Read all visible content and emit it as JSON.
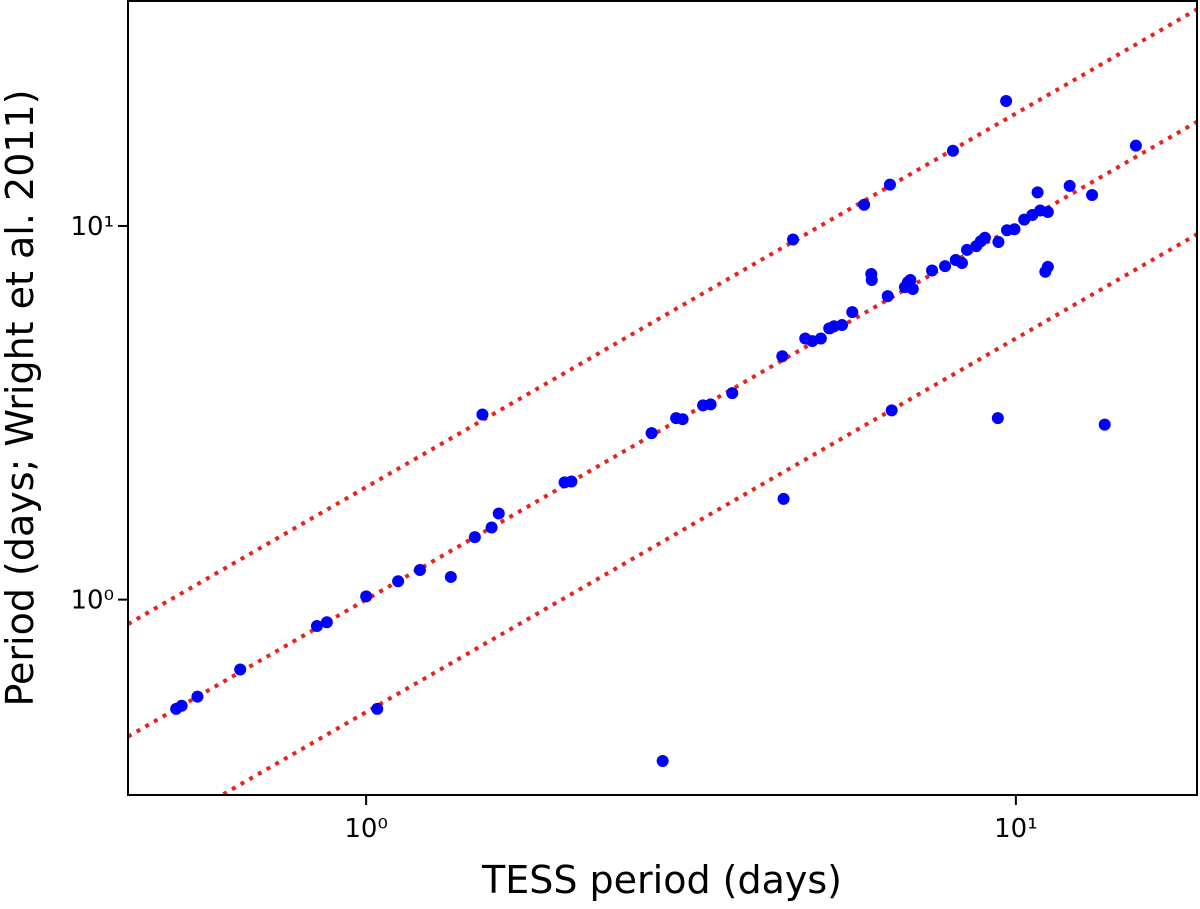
{
  "chart_data": {
    "type": "scatter",
    "xlabel": "TESS period (days)",
    "ylabel": "Period (days; Wright et al. 2011)",
    "xscale": "log",
    "yscale": "log",
    "xlim": [
      0.43,
      19
    ],
    "ylim": [
      0.3,
      40
    ],
    "xticks": [
      {
        "value": 1,
        "label": "10⁰"
      },
      {
        "value": 10,
        "label": "10¹"
      }
    ],
    "yticks": [
      {
        "value": 1,
        "label": "10⁰"
      },
      {
        "value": 10,
        "label": "10¹"
      }
    ],
    "color": "#0000ff",
    "reference_lines": {
      "color": "#e8231b",
      "style": "dotted",
      "factors": [
        2,
        1,
        0.5
      ]
    },
    "x": [
      0.51,
      0.52,
      0.55,
      0.64,
      0.84,
      0.87,
      1.0,
      1.04,
      1.12,
      1.21,
      1.35,
      1.47,
      1.51,
      1.56,
      1.6,
      2.02,
      2.07,
      2.75,
      2.86,
      3.0,
      3.07,
      3.3,
      3.39,
      3.66,
      4.37,
      4.39,
      4.54,
      4.74,
      4.86,
      5.01,
      5.16,
      5.25,
      5.4,
      5.6,
      5.84,
      5.99,
      6.0,
      6.35,
      6.4,
      6.44,
      6.75,
      6.82,
      6.88,
      6.94,
      7.43,
      7.78,
      8.0,
      8.08,
      8.26,
      8.41,
      8.69,
      8.83,
      8.96,
      9.4,
      9.38,
      9.66,
      9.69,
      9.95,
      10.3,
      10.6,
      10.8,
      10.9,
      11.1,
      11.2,
      11.2,
      12.1,
      13.1,
      13.7,
      15.3
    ],
    "values": [
      0.51,
      0.52,
      0.55,
      0.65,
      0.85,
      0.87,
      1.02,
      0.51,
      1.12,
      1.2,
      1.15,
      1.47,
      3.13,
      1.56,
      1.7,
      2.06,
      2.07,
      2.79,
      0.37,
      3.06,
      3.04,
      3.31,
      3.33,
      3.57,
      4.48,
      1.86,
      9.2,
      5.0,
      4.92,
      5.0,
      5.32,
      5.39,
      5.43,
      5.88,
      11.4,
      7.44,
      7.17,
      6.49,
      12.9,
      3.21,
      6.86,
      7.07,
      7.17,
      6.78,
      7.6,
      7.81,
      15.9,
      8.11,
      7.96,
      8.63,
      8.83,
      9.1,
      9.3,
      9.06,
      3.06,
      21.6,
      9.74,
      9.8,
      10.4,
      10.7,
      12.3,
      11.0,
      7.54,
      10.9,
      7.77,
      12.8,
      12.1,
      2.94,
      16.4
    ]
  }
}
